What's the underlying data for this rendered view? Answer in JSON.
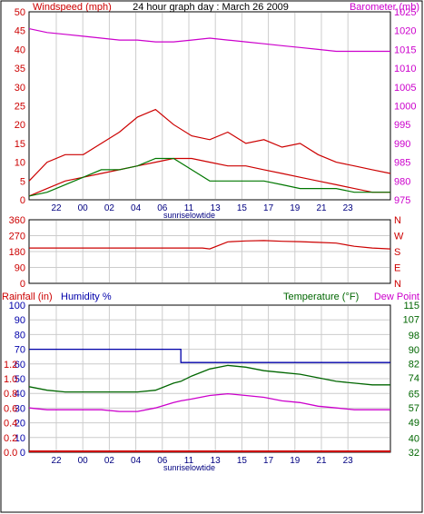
{
  "title": "24 hour graph day : March 26 2009",
  "colors": {
    "wind": "#cc0000",
    "gust": "#cc0000",
    "avg": "#007700",
    "dir": "#cc0000",
    "baro": "#cc00cc",
    "humidity": "#0000aa",
    "temp": "#006600",
    "dew": "#cc00cc",
    "rain": "#cc0000",
    "grid": "#cccccc",
    "frame": "#000000"
  },
  "x_ticks": [
    "22",
    "00",
    "02",
    "04",
    "06",
    "11",
    "13",
    "15",
    "17",
    "19",
    "21",
    "23"
  ],
  "annotations": {
    "sunrise": "sunrise",
    "lowtide": "lowtide"
  },
  "chart_data": [
    {
      "type": "line",
      "title": "24 hour graph day : March 26 2009",
      "left_label": "Windspeed (mph)",
      "right_label": "Barometer (mb)",
      "left_ticks": [
        "0",
        "5",
        "10",
        "15",
        "20",
        "25",
        "30",
        "35",
        "40",
        "45",
        "50"
      ],
      "right_ticks": [
        "975",
        "980",
        "985",
        "990",
        "995",
        "1000",
        "1005",
        "1010",
        "1015",
        "1020",
        "1025"
      ],
      "ylim_left": [
        0,
        50
      ],
      "ylim_right": [
        975,
        1025
      ],
      "x": [
        0,
        0.05,
        0.1,
        0.15,
        0.2,
        0.25,
        0.3,
        0.35,
        0.4,
        0.45,
        0.5,
        0.55,
        0.6,
        0.65,
        0.7,
        0.75,
        0.8,
        0.85,
        0.9,
        0.95,
        1
      ],
      "series": [
        {
          "key": "baro",
          "values": [
            1020.5,
            1019.5,
            1019,
            1018.5,
            1018,
            1017.5,
            1017.5,
            1017,
            1017,
            1017.5,
            1018,
            1017.5,
            1017,
            1016.5,
            1016,
            1015.5,
            1015,
            1014.5,
            1014.5,
            1014.5,
            1014.5
          ]
        },
        {
          "key": "gust",
          "values": [
            5,
            10,
            12,
            12,
            15,
            18,
            22,
            24,
            20,
            17,
            16,
            18,
            15,
            16,
            14,
            15,
            12,
            10,
            9,
            8,
            7
          ]
        },
        {
          "key": "wind",
          "values": [
            1,
            3,
            5,
            6,
            7,
            8,
            9,
            10,
            11,
            11,
            10,
            9,
            9,
            8,
            7,
            6,
            5,
            4,
            3,
            2,
            2
          ]
        },
        {
          "key": "avg",
          "values": [
            1,
            2,
            4,
            6,
            8,
            8,
            9,
            11,
            11,
            8,
            5,
            5,
            5,
            5,
            4,
            3,
            3,
            3,
            2,
            2,
            2
          ]
        }
      ]
    },
    {
      "type": "line",
      "left_ticks": [
        "0",
        "90",
        "180",
        "270",
        "360"
      ],
      "right_ticks": [
        "N",
        "E",
        "S",
        "W",
        "N"
      ],
      "ylim": [
        0,
        360
      ],
      "x": [
        0,
        0.1,
        0.2,
        0.3,
        0.4,
        0.48,
        0.5,
        0.55,
        0.6,
        0.65,
        0.7,
        0.75,
        0.8,
        0.85,
        0.9,
        0.95,
        1
      ],
      "series": [
        {
          "key": "dir",
          "values": [
            200,
            200,
            200,
            200,
            200,
            200,
            195,
            235,
            240,
            242,
            238,
            236,
            232,
            228,
            210,
            200,
            195
          ]
        }
      ]
    },
    {
      "type": "line",
      "labels": {
        "rainfall": "Rainfall (in)",
        "humidity": "Humidity %",
        "temperature": "Temperature (°F)",
        "dew_point": "Dew Point"
      },
      "rain_ticks": [
        "0.0",
        "0.2",
        "0.4",
        "0.6",
        "0.8",
        "1.0",
        "1.2"
      ],
      "humidity_ticks": [
        "0",
        "10",
        "20",
        "30",
        "40",
        "50",
        "60",
        "70",
        "80",
        "90",
        "100"
      ],
      "temp_ticks": [
        "32",
        "40",
        "49",
        "57",
        "65",
        "74",
        "82",
        "90",
        "98",
        "107",
        "115"
      ],
      "ylim_humidity": [
        0,
        100
      ],
      "ylim_temp": [
        32,
        115
      ],
      "x": [
        0,
        0.05,
        0.1,
        0.15,
        0.2,
        0.25,
        0.3,
        0.35,
        0.4,
        0.42,
        0.45,
        0.5,
        0.55,
        0.6,
        0.65,
        0.7,
        0.75,
        0.8,
        0.85,
        0.9,
        0.95,
        1
      ],
      "series": [
        {
          "key": "humidity",
          "values": [
            70,
            70,
            70,
            70,
            70,
            70,
            70,
            70,
            70,
            61,
            61,
            61,
            61,
            61,
            61,
            61,
            61,
            61,
            61,
            61,
            61,
            61
          ]
        },
        {
          "key": "temp",
          "values": [
            69,
            67,
            66,
            66,
            66,
            66,
            66,
            67,
            71,
            72,
            75,
            79,
            81,
            80,
            78,
            77,
            76,
            74,
            72,
            71,
            70,
            70
          ]
        },
        {
          "key": "dew",
          "values": [
            57,
            56,
            56,
            56,
            56,
            55,
            55,
            57,
            60,
            61,
            62,
            64,
            65,
            64,
            63,
            61,
            60,
            58,
            57,
            56,
            56,
            56
          ]
        },
        {
          "key": "rain",
          "values": [
            0,
            0,
            0,
            0,
            0,
            0,
            0,
            0,
            0,
            0,
            0,
            0,
            0,
            0,
            0,
            0,
            0,
            0,
            0,
            0,
            0,
            0
          ]
        }
      ]
    }
  ]
}
